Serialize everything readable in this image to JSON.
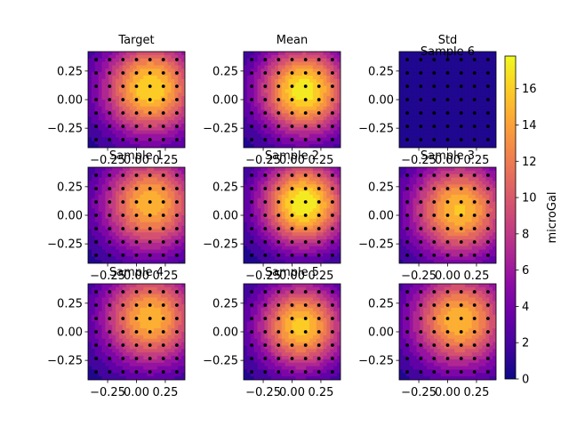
{
  "chart_data": {
    "type": "heatmap",
    "layout": "3x3 grid of filled-contour panels with one shared vertical colorbar on the right",
    "colormap": "plasma",
    "colors": {
      "scatter_points": "#000000",
      "plasma_low": "#0d0887",
      "plasma_mid": "#cc4778",
      "plasma_high": "#f0f921"
    },
    "x_ticks": [
      "−0.25",
      "0.00",
      "0.25"
    ],
    "y_ticks": [
      "0.25",
      "0.00",
      "−0.25"
    ],
    "x_tick_values": [
      -0.25,
      0.0,
      0.25
    ],
    "y_tick_values": [
      0.25,
      0.0,
      -0.25
    ],
    "xlim": [
      -0.42,
      0.42
    ],
    "ylim": [
      -0.42,
      0.42
    ],
    "grid": false,
    "colorbar": {
      "label": "microGal",
      "range": [
        0,
        17.8
      ],
      "ticks": [
        "0",
        "2",
        "4",
        "6",
        "8",
        "10",
        "12",
        "14",
        "16"
      ],
      "tick_values": [
        0,
        2,
        4,
        6,
        8,
        10,
        12,
        14,
        16
      ]
    },
    "scatter_grid": {
      "x": [
        -0.35,
        -0.233,
        -0.117,
        0.0,
        0.117,
        0.233,
        0.35
      ],
      "y": [
        -0.35,
        -0.233,
        -0.117,
        0.0,
        0.117,
        0.233,
        0.35
      ]
    },
    "panels": [
      {
        "title": "Target",
        "field": {
          "center": [
            0.12,
            0.1
          ],
          "peak": 16.5,
          "sigma": 0.3
        }
      },
      {
        "title": "Mean",
        "field": {
          "center": [
            0.1,
            0.08
          ],
          "peak": 17.5,
          "sigma": 0.28
        }
      },
      {
        "title": "Std",
        "subtitle": "Sample 6",
        "field": {
          "center": [
            0.0,
            0.0
          ],
          "peak": 0.6,
          "sigma": 0.5
        }
      },
      {
        "title": "Sample 1",
        "field": {
          "center": [
            0.12,
            0.1
          ],
          "peak": 15.0,
          "sigma": 0.3
        }
      },
      {
        "title": "Sample 2",
        "field": {
          "center": [
            0.1,
            0.1
          ],
          "peak": 17.8,
          "sigma": 0.27
        }
      },
      {
        "title": "Sample 3",
        "field": {
          "center": [
            0.1,
            0.05
          ],
          "peak": 15.5,
          "sigma": 0.3
        }
      },
      {
        "title": "Sample 4",
        "field": {
          "center": [
            0.12,
            0.12
          ],
          "peak": 15.0,
          "sigma": 0.3
        }
      },
      {
        "title": "Sample 5",
        "field": {
          "center": [
            0.08,
            0.05
          ],
          "peak": 16.0,
          "sigma": 0.27
        }
      },
      {
        "title": "",
        "field": {
          "center": [
            0.1,
            0.1
          ],
          "peak": 15.2,
          "sigma": 0.3
        }
      }
    ]
  }
}
